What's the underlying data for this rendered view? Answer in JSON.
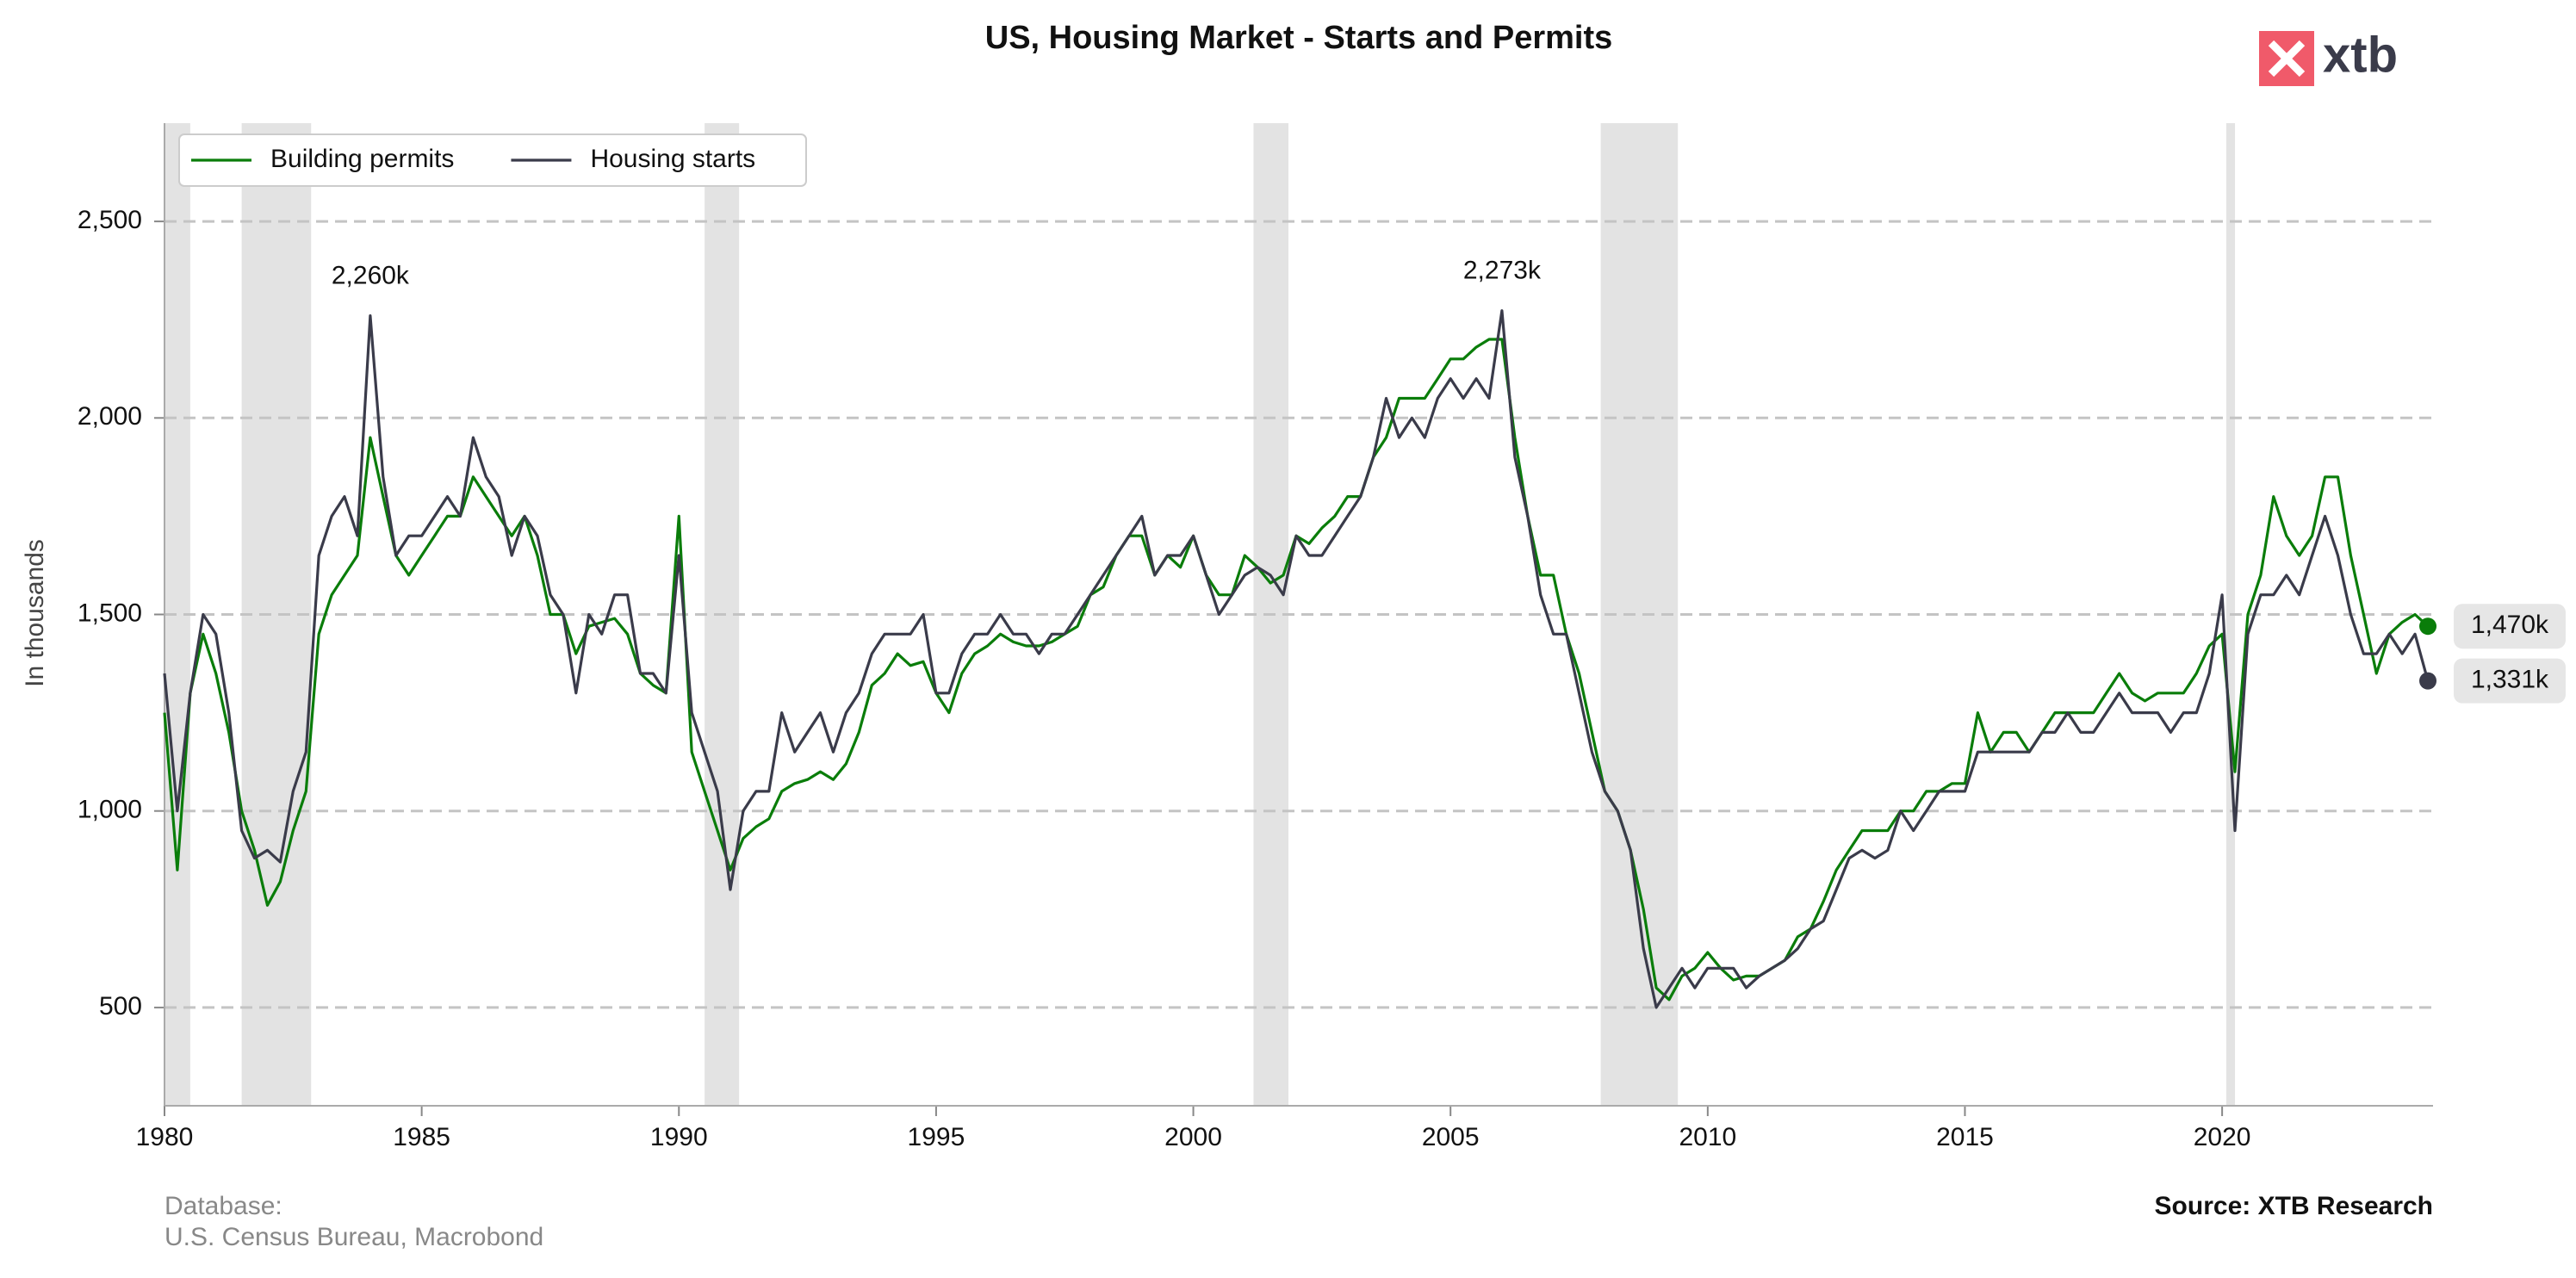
{
  "chart_data": {
    "type": "line",
    "title": "US, Housing Market - Starts and Permits",
    "logo": "xtb",
    "y_label": "In thousands",
    "footer_left": [
      "Database:",
      "U.S. Census Bureau, Macrobond"
    ],
    "footer_right": "Source: XTB Research",
    "xlim": [
      1980,
      2024.1
    ],
    "xticks": [
      1980,
      1985,
      1990,
      1995,
      2000,
      2005,
      2010,
      2015,
      2020
    ],
    "ylim": [
      250,
      2750
    ],
    "yticks": [
      500,
      {
        "value": 1000,
        "label": "1,000"
      },
      {
        "value": 1500,
        "label": "1,500"
      },
      {
        "value": 2000,
        "label": "2,000"
      },
      {
        "value": 2500,
        "label": "2,500"
      }
    ],
    "grid": true,
    "legend": "upper left",
    "recessions": [
      [
        1980.0,
        1980.5
      ],
      [
        1981.5,
        1982.85
      ],
      [
        1990.5,
        1991.17
      ],
      [
        2001.17,
        2001.85
      ],
      [
        2007.92,
        2009.42
      ],
      [
        2020.08,
        2020.25
      ]
    ],
    "x": [
      1980,
      1980.25,
      1980.5,
      1980.75,
      1981,
      1981.25,
      1981.5,
      1981.75,
      1982,
      1982.25,
      1982.5,
      1982.75,
      1983,
      1983.25,
      1983.5,
      1983.75,
      1984,
      1984.25,
      1984.5,
      1984.75,
      1985,
      1985.25,
      1985.5,
      1985.75,
      1986,
      1986.25,
      1986.5,
      1986.75,
      1987,
      1987.25,
      1987.5,
      1987.75,
      1988,
      1988.25,
      1988.5,
      1988.75,
      1989,
      1989.25,
      1989.5,
      1989.75,
      1990,
      1990.25,
      1990.5,
      1990.75,
      1991,
      1991.25,
      1991.5,
      1991.75,
      1992,
      1992.25,
      1992.5,
      1992.75,
      1993,
      1993.25,
      1993.5,
      1993.75,
      1994,
      1994.25,
      1994.5,
      1994.75,
      1995,
      1995.25,
      1995.5,
      1995.75,
      1996,
      1996.25,
      1996.5,
      1996.75,
      1997,
      1997.25,
      1997.5,
      1997.75,
      1998,
      1998.25,
      1998.5,
      1998.75,
      1999,
      1999.25,
      1999.5,
      1999.75,
      2000,
      2000.25,
      2000.5,
      2000.75,
      2001,
      2001.25,
      2001.5,
      2001.75,
      2002,
      2002.25,
      2002.5,
      2002.75,
      2003,
      2003.25,
      2003.5,
      2003.75,
      2004,
      2004.25,
      2004.5,
      2004.75,
      2005,
      2005.25,
      2005.5,
      2005.75,
      2006,
      2006.25,
      2006.5,
      2006.75,
      2007,
      2007.25,
      2007.5,
      2007.75,
      2008,
      2008.25,
      2008.5,
      2008.75,
      2009,
      2009.25,
      2009.5,
      2009.75,
      2010,
      2010.25,
      2010.5,
      2010.75,
      2011,
      2011.25,
      2011.5,
      2011.75,
      2012,
      2012.25,
      2012.5,
      2012.75,
      2013,
      2013.25,
      2013.5,
      2013.75,
      2014,
      2014.25,
      2014.5,
      2014.75,
      2015,
      2015.25,
      2015.5,
      2015.75,
      2016,
      2016.25,
      2016.5,
      2016.75,
      2017,
      2017.25,
      2017.5,
      2017.75,
      2018,
      2018.25,
      2018.5,
      2018.75,
      2019,
      2019.25,
      2019.5,
      2019.75,
      2020,
      2020.25,
      2020.5,
      2020.75,
      2021,
      2021.25,
      2021.5,
      2021.75,
      2022,
      2022.25,
      2022.5,
      2022.75,
      2023,
      2023.25,
      2023.5,
      2023.75,
      2024
    ],
    "series": [
      {
        "name": "Building permits",
        "color": "#0a7d0a",
        "end_label": "1,470k",
        "values": [
          1250,
          850,
          1300,
          1450,
          1350,
          1200,
          1000,
          900,
          760,
          820,
          950,
          1050,
          1450,
          1550,
          1600,
          1650,
          1950,
          1800,
          1650,
          1600,
          1650,
          1700,
          1750,
          1750,
          1850,
          1800,
          1750,
          1700,
          1750,
          1650,
          1500,
          1500,
          1400,
          1470,
          1480,
          1490,
          1450,
          1350,
          1320,
          1300,
          1750,
          1150,
          1050,
          950,
          850,
          930,
          960,
          980,
          1050,
          1070,
          1080,
          1100,
          1080,
          1120,
          1200,
          1320,
          1350,
          1400,
          1370,
          1380,
          1300,
          1250,
          1350,
          1400,
          1420,
          1450,
          1430,
          1420,
          1420,
          1430,
          1450,
          1470,
          1550,
          1570,
          1650,
          1700,
          1700,
          1600,
          1650,
          1620,
          1700,
          1600,
          1550,
          1550,
          1650,
          1620,
          1580,
          1600,
          1700,
          1680,
          1720,
          1750,
          1800,
          1800,
          1900,
          1950,
          2050,
          2050,
          2050,
          2100,
          2150,
          2150,
          2180,
          2200,
          2200,
          1950,
          1750,
          1600,
          1600,
          1450,
          1350,
          1200,
          1050,
          1000,
          900,
          750,
          550,
          520,
          580,
          600,
          640,
          600,
          570,
          580,
          580,
          600,
          620,
          680,
          700,
          770,
          850,
          900,
          950,
          950,
          950,
          1000,
          1000,
          1050,
          1050,
          1070,
          1070,
          1250,
          1150,
          1200,
          1200,
          1150,
          1200,
          1250,
          1250,
          1250,
          1250,
          1300,
          1350,
          1300,
          1280,
          1300,
          1300,
          1300,
          1350,
          1420,
          1450,
          1100,
          1500,
          1600,
          1800,
          1700,
          1650,
          1700,
          1850,
          1850,
          1650,
          1500,
          1350,
          1450,
          1480,
          1500,
          1470
        ]
      },
      {
        "name": "Housing starts",
        "color": "#3a3b4a",
        "end_label": "1,331k",
        "values": [
          1350,
          1000,
          1300,
          1500,
          1450,
          1250,
          950,
          880,
          900,
          870,
          1050,
          1150,
          1650,
          1750,
          1800,
          1700,
          2260,
          1850,
          1650,
          1700,
          1700,
          1750,
          1800,
          1750,
          1950,
          1850,
          1800,
          1650,
          1750,
          1700,
          1550,
          1500,
          1300,
          1500,
          1450,
          1550,
          1550,
          1350,
          1350,
          1300,
          1650,
          1250,
          1150,
          1050,
          800,
          1000,
          1050,
          1050,
          1250,
          1150,
          1200,
          1250,
          1150,
          1250,
          1300,
          1400,
          1450,
          1450,
          1450,
          1500,
          1300,
          1300,
          1400,
          1450,
          1450,
          1500,
          1450,
          1450,
          1400,
          1450,
          1450,
          1500,
          1550,
          1600,
          1650,
          1700,
          1750,
          1600,
          1650,
          1650,
          1700,
          1600,
          1500,
          1550,
          1600,
          1620,
          1600,
          1550,
          1700,
          1650,
          1650,
          1700,
          1750,
          1800,
          1900,
          2050,
          1950,
          2000,
          1950,
          2050,
          2100,
          2050,
          2100,
          2050,
          2273,
          1900,
          1750,
          1550,
          1450,
          1450,
          1300,
          1150,
          1050,
          1000,
          900,
          650,
          500,
          550,
          600,
          550,
          600,
          600,
          600,
          550,
          580,
          600,
          620,
          650,
          700,
          720,
          800,
          880,
          900,
          880,
          900,
          1000,
          950,
          1000,
          1050,
          1050,
          1050,
          1150,
          1150,
          1150,
          1150,
          1150,
          1200,
          1200,
          1250,
          1200,
          1200,
          1250,
          1300,
          1250,
          1250,
          1250,
          1200,
          1250,
          1250,
          1350,
          1550,
          950,
          1450,
          1550,
          1550,
          1600,
          1550,
          1650,
          1750,
          1650,
          1500,
          1400,
          1400,
          1450,
          1400,
          1450,
          1331
        ]
      }
    ],
    "annotations": [
      {
        "label": "2,260k",
        "x": 1984,
        "y": 2260
      },
      {
        "label": "2,273k",
        "x": 2006,
        "y": 2273
      }
    ]
  }
}
